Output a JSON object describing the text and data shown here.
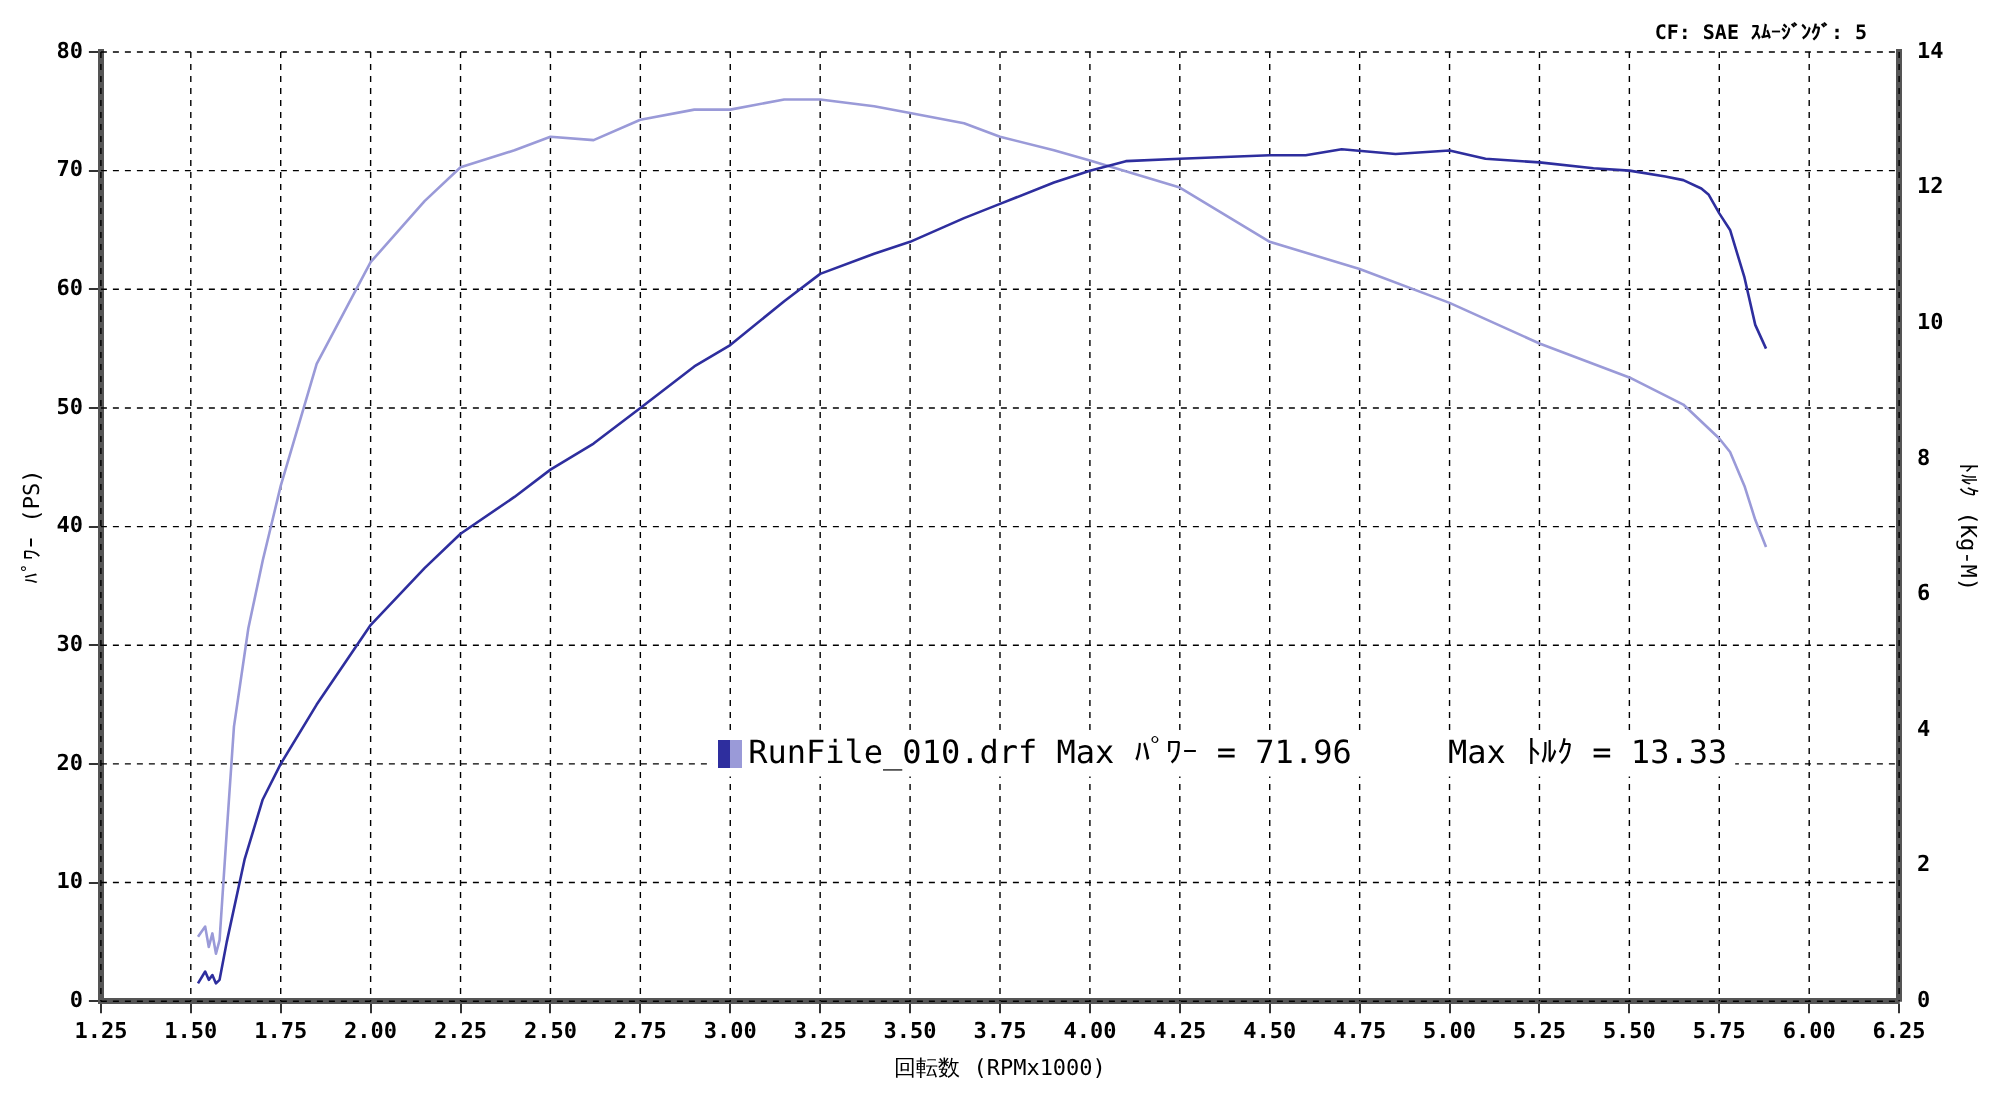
{
  "chart_data": {
    "type": "line",
    "xlabel": "回転数 (RPMx1000)",
    "ylabel": "ﾊﾟﾜｰ (PS)",
    "y2label": "ﾄﾙｸ (Kg-M)",
    "annotations": [
      "CF: SAE ｽﾑｰｼﾞﾝｸﾞ: 5",
      "RunFile_010.drf Max ﾊﾟﾜｰ = 71.96     Max ﾄﾙｸ = 13.33"
    ],
    "series": [
      {
        "color": "#2e2e9e",
        "x": [
          1.52,
          1.54,
          1.55,
          1.56,
          1.57,
          1.58,
          1.6,
          1.65,
          1.7,
          1.75,
          1.85,
          2.0,
          2.15,
          2.25,
          2.4,
          2.5,
          2.62,
          2.75,
          2.9,
          3.0,
          3.15,
          3.25,
          3.4,
          3.5,
          3.65,
          3.75,
          3.9,
          4.0,
          4.1,
          4.25,
          4.5,
          4.6,
          4.7,
          4.85,
          5.0,
          5.1,
          5.25,
          5.4,
          5.5,
          5.6,
          5.65,
          5.7,
          5.72,
          5.75,
          5.78,
          5.82,
          5.85,
          5.88
        ],
        "values": [
          1.5,
          2.5,
          1.8,
          2.2,
          1.5,
          1.8,
          5,
          12,
          17,
          20,
          25,
          31.7,
          36.5,
          39.4,
          42.5,
          44.8,
          47,
          50,
          53.5,
          55.3,
          59,
          61.3,
          63,
          64,
          66,
          67.2,
          69,
          70,
          70.8,
          71,
          71.3,
          71.3,
          71.8,
          71.4,
          71.7,
          71,
          70.7,
          70.2,
          70,
          69.5,
          69.2,
          68.5,
          68,
          66.4,
          65,
          61,
          57,
          55
        ]
      },
      {
        "color": "#9a9ad8",
        "axis": "y2",
        "x": [
          1.52,
          1.54,
          1.55,
          1.56,
          1.57,
          1.58,
          1.6,
          1.62,
          1.66,
          1.7,
          1.75,
          1.85,
          2.0,
          2.15,
          2.25,
          2.4,
          2.5,
          2.62,
          2.75,
          2.9,
          3.0,
          3.15,
          3.25,
          3.4,
          3.5,
          3.65,
          3.75,
          3.9,
          4.0,
          4.25,
          4.5,
          4.75,
          5.0,
          5.25,
          5.5,
          5.65,
          5.75,
          5.78,
          5.82,
          5.85,
          5.88
        ],
        "values": [
          0.95,
          1.1,
          0.8,
          1.0,
          0.7,
          0.9,
          2.5,
          4.05,
          5.5,
          6.5,
          7.6,
          9.4,
          10.9,
          11.8,
          12.3,
          12.55,
          12.75,
          12.7,
          13.0,
          13.15,
          13.15,
          13.3,
          13.3,
          13.2,
          13.1,
          12.95,
          12.75,
          12.55,
          12.4,
          12.0,
          11.2,
          10.8,
          10.3,
          9.7,
          9.2,
          8.8,
          8.3,
          8.1,
          7.6,
          7.1,
          6.7
        ]
      }
    ],
    "xlim": [
      1.25,
      6.25
    ],
    "xticks": [
      1.25,
      {
        "value": 1.5,
        "label": "1.50"
      },
      1.75,
      {
        "value": 2,
        "label": "2.00"
      },
      2.25,
      {
        "value": 2.5,
        "label": "2.50"
      },
      2.75,
      {
        "value": 3,
        "label": "3.00"
      },
      3.25,
      {
        "value": 3.5,
        "label": "3.50"
      },
      3.75,
      {
        "value": 4,
        "label": "4.00"
      },
      4.25,
      {
        "value": 4.5,
        "label": "4.50"
      },
      4.75,
      {
        "value": 5,
        "label": "5.00"
      },
      5.25,
      {
        "value": 5.5,
        "label": "5.50"
      },
      5.75,
      {
        "value": 6,
        "label": "6.00"
      },
      6.25
    ],
    "ylim": [
      0,
      80
    ],
    "yticks": [
      0,
      10,
      20,
      30,
      40,
      50,
      60,
      70,
      80
    ],
    "y2lim": [
      0,
      14
    ],
    "y2ticks": [
      0,
      2,
      4,
      6,
      8,
      10,
      12,
      14
    ],
    "grid": true,
    "line_style": "solid",
    "marker": "none"
  }
}
